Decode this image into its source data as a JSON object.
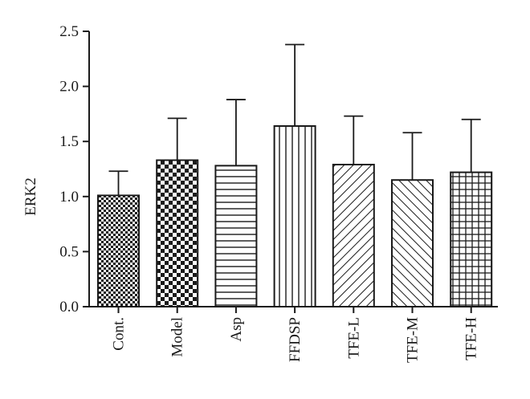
{
  "chart_data": {
    "type": "bar",
    "title": "",
    "xlabel": "",
    "ylabel": "ERK2",
    "ylim": [
      0,
      2.5
    ],
    "yticks": [
      "0.0",
      "0.5",
      "1.0",
      "1.5",
      "2.0",
      "2.5"
    ],
    "grid": false,
    "categories": [
      "Cont.",
      "Model",
      "Asp",
      "FFDSP",
      "TFE-L",
      "TFE-M",
      "TFE-H"
    ],
    "values": [
      1.01,
      1.33,
      1.28,
      1.64,
      1.29,
      1.15,
      1.22
    ],
    "error_upper": [
      0.22,
      0.38,
      0.6,
      0.74,
      0.44,
      0.43,
      0.48
    ],
    "patterns": [
      "checker-fine",
      "checker-coarse",
      "horizontal-lines",
      "vertical-lines",
      "diagonal-up-right",
      "diagonal-down-right",
      "grid"
    ],
    "colors": {
      "ink": "#1a1a1a",
      "background": "#ffffff"
    }
  }
}
